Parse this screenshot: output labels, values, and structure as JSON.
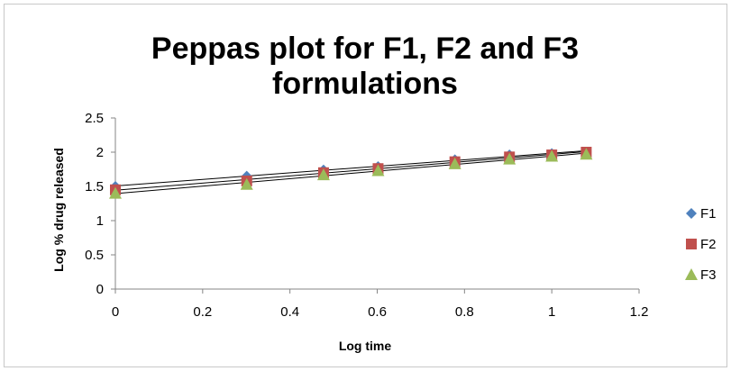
{
  "chart_data": {
    "type": "scatter",
    "title_lines": [
      "Peppas plot for F1, F2 and F3",
      "formulations"
    ],
    "xlabel": "Log time",
    "ylabel": "Log % drug released",
    "xlim": [
      0,
      1.2
    ],
    "ylim": [
      0,
      2.5
    ],
    "x_ticks": [
      "0",
      "0.2",
      "0.4",
      "0.6",
      "0.8",
      "1",
      "1.2"
    ],
    "y_ticks": [
      "0",
      "0.5",
      "1",
      "1.5",
      "2",
      "2.5"
    ],
    "grid": false,
    "trendlines": true,
    "legend_position": "right",
    "x": [
      0,
      0.301,
      0.477,
      0.602,
      0.778,
      0.903,
      1.0,
      1.079
    ],
    "series": [
      {
        "name": "F1",
        "marker": "diamond",
        "color": "#4f81bd",
        "values": [
          1.5,
          1.65,
          1.74,
          1.79,
          1.89,
          1.96,
          1.98,
          2.0
        ]
      },
      {
        "name": "F2",
        "marker": "square",
        "color": "#c0504d",
        "values": [
          1.45,
          1.58,
          1.7,
          1.76,
          1.86,
          1.93,
          1.96,
          2.0
        ]
      },
      {
        "name": "F3",
        "marker": "triangle",
        "color": "#9bbb59",
        "values": [
          1.4,
          1.53,
          1.67,
          1.73,
          1.83,
          1.9,
          1.94,
          1.97
        ]
      }
    ]
  }
}
